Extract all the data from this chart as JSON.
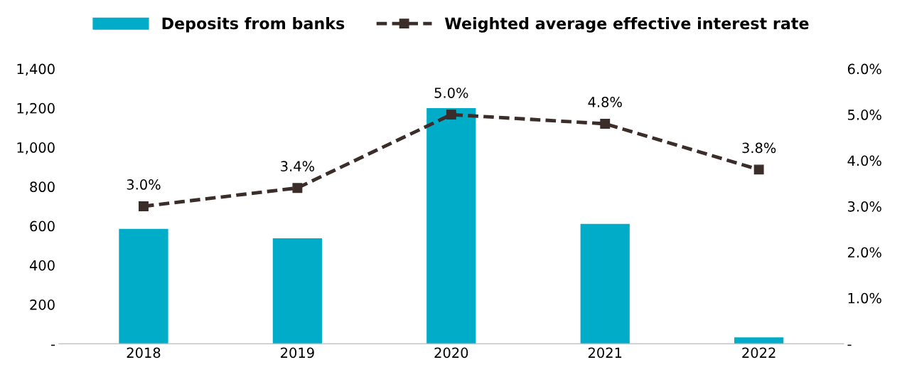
{
  "chart_data": {
    "type": "bar",
    "categories": [
      "2018",
      "2019",
      "2020",
      "2021",
      "2022"
    ],
    "series": [
      {
        "name": "Deposits from banks",
        "color": "#00acc8",
        "values": [
          585,
          537,
          1200,
          610,
          33
        ]
      },
      {
        "name": "Weighted average effective interest rate",
        "type": "line",
        "axis": "y2",
        "color": "#3b2d2a",
        "values": [
          3.0,
          3.4,
          5.0,
          4.8,
          3.8
        ],
        "value_labels": [
          "3.0%",
          "3.4%",
          "5.0%",
          "4.8%",
          "3.8%"
        ],
        "marker": "square",
        "line_style": "dashed"
      }
    ],
    "ylim": [
      0,
      1400
    ],
    "yticks": [
      {
        "value": 0,
        "label": "-"
      },
      {
        "value": 200,
        "label": "200"
      },
      {
        "value": 400,
        "label": "400"
      },
      {
        "value": 600,
        "label": "600"
      },
      {
        "value": 800,
        "label": "800"
      },
      {
        "value": 1000,
        "label": "1,000"
      },
      {
        "value": 1200,
        "label": "1,200"
      },
      {
        "value": 1400,
        "label": "1,400"
      }
    ],
    "y2lim": [
      0,
      6
    ],
    "y2ticks": [
      {
        "value": 0,
        "label": "-"
      },
      {
        "value": 1,
        "label": "1.0%"
      },
      {
        "value": 2,
        "label": "2.0%"
      },
      {
        "value": 3,
        "label": "3.0%"
      },
      {
        "value": 4,
        "label": "4.0%"
      },
      {
        "value": 5,
        "label": "5.0%"
      },
      {
        "value": 6,
        "label": "6.0%"
      }
    ],
    "grid": false,
    "legend": "top"
  }
}
